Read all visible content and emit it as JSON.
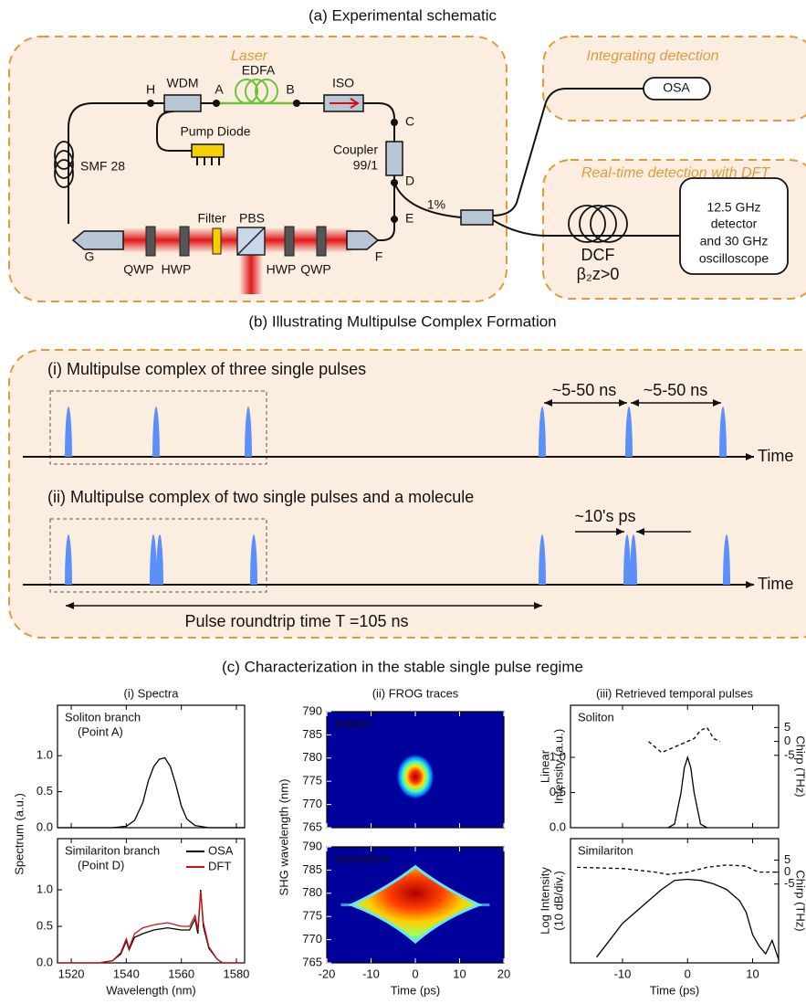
{
  "panel_a": {
    "title": "(a) Experimental schematic",
    "laser_label": "Laser",
    "edfa": "EDFA",
    "wdm": "WDM",
    "iso": "ISO",
    "pump_diode": "Pump Diode",
    "coupler": [
      "Coupler",
      "99/1"
    ],
    "smf": "SMF 28",
    "filter": "Filter",
    "pbs": "PBS",
    "waveplates": [
      "QWP",
      "HWP",
      "HWP",
      "QWP"
    ],
    "points": [
      "H",
      "A",
      "B",
      "C",
      "D",
      "E",
      "F",
      "G"
    ],
    "output_ratio": "1%",
    "integrating_label": "Integrating detection",
    "osa": "OSA",
    "realtime_label": "Real-time detection with DFT",
    "dcf": "DCF",
    "dcf_condition": "β₂z>0",
    "detector": [
      "12.5 GHz",
      "detector",
      "and 30 GHz",
      "oscilloscope"
    ]
  },
  "panel_b": {
    "title": "(b) Illustrating Multipulse Complex Formation",
    "row_i": {
      "label": "(i) Multipulse complex of three single pulses",
      "spacing_labels": [
        "~5-50 ns",
        "~5-50 ns"
      ],
      "axis_label": "Time"
    },
    "row_ii": {
      "label": "(ii) Multipulse complex of two single pulses and a molecule",
      "spacing_label": "~10's ps",
      "axis_label": "Time"
    },
    "roundtrip_label": "Pulse roundtrip time T =105 ns"
  },
  "panel_c": {
    "title": "(c) Characterization in the stable single pulse regime"
  },
  "chart_data": [
    {
      "type": "line",
      "title": "(i) Spectra",
      "ylabel": "Spectrum (a.u.)",
      "xlabel": "Wavelength (nm)",
      "xlim": [
        1515,
        1583
      ],
      "xticks": [
        1520,
        1540,
        1560,
        1580
      ],
      "panels": [
        {
          "annotation": [
            "Soliton branch",
            "(Point A)"
          ],
          "ylim": [
            0,
            1.7
          ],
          "yticks": [
            {
              "value": 0,
              "label": "0.0"
            },
            {
              "value": 0.5,
              "label": "0.5"
            },
            {
              "value": 1,
              "label": "1.0"
            }
          ],
          "series": [
            {
              "color": "#000000",
              "x": [
                1515,
                1535,
                1540,
                1543,
                1546,
                1548,
                1550,
                1552,
                1554,
                1556,
                1558,
                1560,
                1562,
                1565,
                1570,
                1583
              ],
              "values": [
                0,
                0,
                0.02,
                0.1,
                0.35,
                0.65,
                0.85,
                0.95,
                0.97,
                0.85,
                0.6,
                0.3,
                0.12,
                0.03,
                0,
                0
              ]
            }
          ]
        },
        {
          "annotation": [
            "Similariton branch",
            "(Point D)"
          ],
          "ylim": [
            0,
            1.7
          ],
          "yticks": [
            {
              "value": 0,
              "label": "0.0"
            },
            {
              "value": 0.5,
              "label": "0.5"
            },
            {
              "value": 1,
              "label": "1.0"
            }
          ],
          "legend": "upper right",
          "series": [
            {
              "name": "OSA",
              "color": "#000000",
              "x": [
                1515,
                1530,
                1535,
                1538,
                1540,
                1541,
                1543,
                1546,
                1550,
                1555,
                1560,
                1563,
                1565,
                1566,
                1567,
                1568,
                1570,
                1573,
                1575,
                1583
              ],
              "values": [
                0,
                0,
                0.03,
                0.12,
                0.3,
                0.18,
                0.35,
                0.4,
                0.45,
                0.48,
                0.45,
                0.45,
                0.6,
                0.4,
                1.0,
                0.5,
                0.2,
                0.05,
                0,
                0
              ]
            },
            {
              "name": "DFT",
              "color": "#d01010",
              "x": [
                1515,
                1530,
                1535,
                1538,
                1540,
                1541,
                1543,
                1546,
                1550,
                1555,
                1560,
                1563,
                1565,
                1566,
                1567,
                1568,
                1570,
                1573,
                1575,
                1583
              ],
              "values": [
                0,
                0,
                0.03,
                0.14,
                0.33,
                0.2,
                0.4,
                0.48,
                0.52,
                0.55,
                0.5,
                0.5,
                0.65,
                0.45,
                0.98,
                0.55,
                0.22,
                0.05,
                0,
                0
              ]
            }
          ]
        }
      ]
    },
    {
      "type": "heatmap",
      "title": "(ii) FROG traces",
      "ylabel": "SHG wavelength (nm)",
      "xlabel": "Time (ps)",
      "xlim": [
        -20,
        20
      ],
      "xticks": [
        -20,
        -10,
        0,
        10,
        20
      ],
      "panels": [
        {
          "annotation": [
            "Soliton"
          ],
          "ylim": [
            765,
            790
          ],
          "yticks": [
            765,
            770,
            775,
            780,
            785,
            790
          ]
        },
        {
          "annotation": [
            "Similariton"
          ],
          "ylim": [
            765,
            790
          ],
          "yticks": [
            765,
            770,
            775,
            780,
            785,
            790
          ]
        }
      ]
    },
    {
      "type": "line",
      "title": "(iii) Retrieved temporal pulses",
      "xlabel": "Time (ps)",
      "y2label": "Chirp (THz)",
      "xlim": [
        -18,
        14
      ],
      "xticks": [
        -10,
        0,
        10
      ],
      "panels": [
        {
          "annotation": [
            "Soliton"
          ],
          "ylabel": [
            "Linear",
            "Intensity (a.u.)"
          ],
          "ylim": [
            0,
            1.74
          ],
          "yticks": [
            {
              "value": 0,
              "label": "0.0"
            },
            {
              "value": 0.5,
              "label": "0.5"
            },
            {
              "value": 1,
              "label": "1.0"
            }
          ],
          "y2lim": [
            -31,
            13
          ],
          "y2ticks": [
            5,
            0,
            -5
          ],
          "series": [
            {
              "color": "#000000",
              "x": [
                -3,
                -2,
                -1,
                -0.5,
                0,
                0.5,
                1,
                2,
                3
              ],
              "values": [
                0,
                0.05,
                0.5,
                0.85,
                1.0,
                0.85,
                0.5,
                0.05,
                0
              ]
            },
            {
              "color": "#000000",
              "dash": true,
              "axis": "y2",
              "x": [
                -6,
                -4,
                -3,
                -1,
                1,
                2,
                3,
                4,
                5
              ],
              "values": [
                0,
                -4,
                -3,
                -1,
                1,
                4,
                5,
                1,
                0
              ]
            }
          ]
        },
        {
          "annotation": [
            "Similariton"
          ],
          "ylabel": [
            "Log Intensity",
            "(10 dB/div.)"
          ],
          "ylim": [
            0,
            11
          ],
          "y2lim": [
            -38,
            14
          ],
          "y2ticks": [
            5,
            0,
            -5
          ],
          "series": [
            {
              "color": "#000000",
              "x": [
                -14,
                -12,
                -10,
                -8,
                -6,
                -4,
                -2,
                0,
                2,
                4,
                6,
                8,
                9,
                10,
                11,
                12,
                13,
                14
              ],
              "values": [
                0.5,
                2,
                3.5,
                4.5,
                5.5,
                6.5,
                7.3,
                7.4,
                7.3,
                7,
                6.5,
                5.5,
                4.5,
                2.5,
                1.5,
                0.8,
                2,
                0.3
              ]
            },
            {
              "color": "#000000",
              "dash": true,
              "axis": "y2",
              "x": [
                -17,
                -10,
                -5,
                -3,
                0,
                3,
                6,
                9,
                10,
                11,
                14
              ],
              "values": [
                2,
                1.5,
                0,
                -1,
                0,
                2,
                3,
                2.5,
                1,
                0,
                0
              ]
            }
          ]
        }
      ]
    }
  ]
}
